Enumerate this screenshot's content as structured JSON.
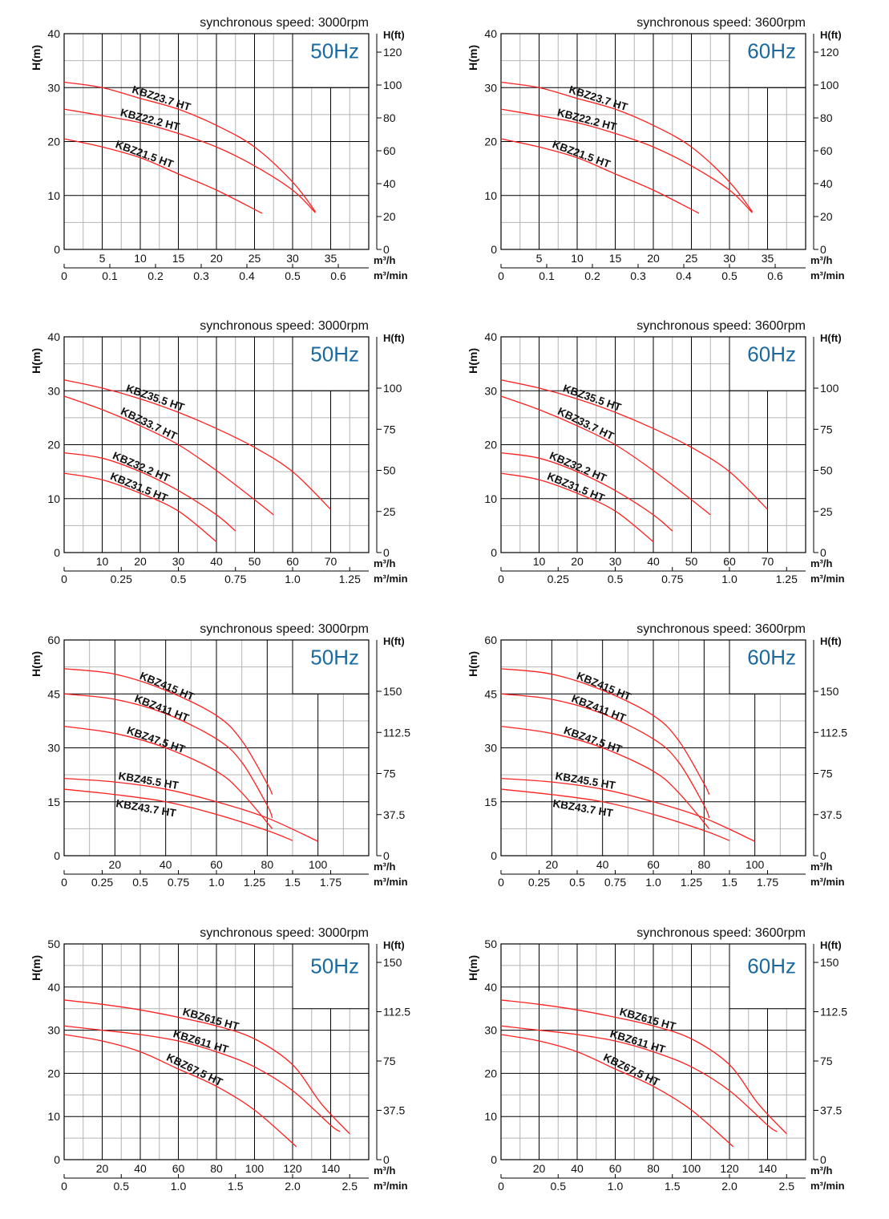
{
  "colors": {
    "curve": "#ff2020",
    "hz_label": "#1a6aa0",
    "major_grid": "#000000",
    "minor_grid": "#b4b4b4"
  },
  "chart_data": [
    {
      "type": "line",
      "title": "synchronous speed: 3000rpm",
      "badge": "50Hz",
      "ylabel": "H(m)",
      "ylabel2": "H(ft)",
      "xunit": "m³/h",
      "xunit2": "m³/min",
      "xlim": [
        0,
        40
      ],
      "ylim": [
        0,
        40
      ],
      "grid": true,
      "xticks": [
        5,
        10,
        15,
        20,
        25,
        30,
        35
      ],
      "yticks": [
        0,
        10,
        20,
        30,
        40
      ],
      "ft_ticks": [
        "0",
        "20",
        "40",
        "60",
        "80",
        "100",
        "120"
      ],
      "ft_values": [
        0,
        20,
        40,
        60,
        80,
        100,
        120
      ],
      "min_ticks": [
        "0",
        "0.1",
        "0.2",
        "0.3",
        "0.4",
        "0.5",
        "0.6"
      ],
      "min_values": [
        0,
        0.1,
        0.2,
        0.3,
        0.4,
        0.5,
        0.6
      ],
      "series": [
        {
          "name": "KBZ23.7 HT",
          "label_x": 8.7,
          "x": [
            0,
            5,
            10,
            15,
            20,
            25,
            30,
            33
          ],
          "y": [
            31,
            30,
            28,
            26,
            23,
            19,
            12.5,
            7
          ]
        },
        {
          "name": "KBZ22.2 HT",
          "label_x": 7.2,
          "x": [
            0,
            5,
            10,
            15,
            20,
            25,
            30,
            33
          ],
          "y": [
            26,
            24.8,
            23.5,
            21.5,
            19,
            15.5,
            11,
            6.8
          ]
        },
        {
          "name": "KBZ21.5 HT",
          "label_x": 6.5,
          "x": [
            0,
            5,
            10,
            15,
            20,
            26
          ],
          "y": [
            20.5,
            19,
            17,
            14,
            11,
            6.7
          ]
        }
      ]
    },
    {
      "type": "line",
      "title": "synchronous speed: 3600rpm",
      "badge": "60Hz",
      "ylabel": "H(m)",
      "ylabel2": "H(ft)",
      "xunit": "m³/h",
      "xunit2": "m³/min",
      "xlim": [
        0,
        40
      ],
      "ylim": [
        0,
        40
      ],
      "grid": true,
      "xticks": [
        5,
        10,
        15,
        20,
        25,
        30,
        35
      ],
      "yticks": [
        0,
        10,
        20,
        30,
        40
      ],
      "ft_ticks": [
        "0",
        "20",
        "40",
        "60",
        "80",
        "100",
        "120"
      ],
      "ft_values": [
        0,
        20,
        40,
        60,
        80,
        100,
        120
      ],
      "min_ticks": [
        "0",
        "0.1",
        "0.2",
        "0.3",
        "0.4",
        "0.5",
        "0.6"
      ],
      "min_values": [
        0,
        0.1,
        0.2,
        0.3,
        0.4,
        0.5,
        0.6
      ],
      "series": [
        {
          "name": "KBZ23.7 HT",
          "label_x": 8.7,
          "x": [
            0,
            5,
            10,
            15,
            20,
            25,
            30,
            33
          ],
          "y": [
            31,
            30,
            28,
            26,
            23,
            19,
            12.5,
            7
          ]
        },
        {
          "name": "KBZ22.2 HT",
          "label_x": 7.2,
          "x": [
            0,
            5,
            10,
            15,
            20,
            25,
            30,
            33
          ],
          "y": [
            26,
            24.8,
            23.5,
            21.5,
            19,
            15.5,
            11,
            6.8
          ]
        },
        {
          "name": "KBZ21.5 HT",
          "label_x": 6.5,
          "x": [
            0,
            5,
            10,
            15,
            20,
            26
          ],
          "y": [
            20.5,
            19,
            17,
            14,
            11,
            6.7
          ]
        }
      ]
    },
    {
      "type": "line",
      "title": "synchronous speed: 3000rpm",
      "badge": "50Hz",
      "ylabel": "H(m)",
      "ylabel2": "H(ft)",
      "xunit": "m³/h",
      "xunit2": "m³/min",
      "xlim": [
        0,
        80
      ],
      "ylim": [
        0,
        40
      ],
      "grid": true,
      "xticks": [
        10,
        20,
        30,
        40,
        50,
        60,
        70
      ],
      "yticks": [
        0,
        10,
        20,
        30,
        40
      ],
      "ft_ticks": [
        "0",
        "25",
        "50",
        "75",
        "100"
      ],
      "ft_values": [
        0,
        25,
        50,
        75,
        100
      ],
      "min_ticks": [
        "0",
        "0.25",
        "0.5",
        "0.75",
        "1.0",
        "1.25"
      ],
      "min_values": [
        0,
        0.25,
        0.5,
        0.75,
        1.0,
        1.25
      ],
      "series": [
        {
          "name": "KBZ35.5 HT",
          "label_x": 15.8,
          "x": [
            0,
            10,
            20,
            30,
            40,
            50,
            60,
            70
          ],
          "y": [
            32,
            30.5,
            28.5,
            26,
            23,
            19.5,
            15,
            8
          ]
        },
        {
          "name": "KBZ33.7 HT",
          "label_x": 14.3,
          "x": [
            0,
            10,
            20,
            30,
            40,
            50,
            55
          ],
          "y": [
            29,
            26.5,
            23.5,
            20,
            15.2,
            9.8,
            7
          ]
        },
        {
          "name": "KBZ32.2 HT",
          "label_x": 12.2,
          "x": [
            0,
            10,
            20,
            30,
            40,
            45
          ],
          "y": [
            18.5,
            17.5,
            15,
            11.5,
            7,
            4
          ]
        },
        {
          "name": "KBZ31.5 HT",
          "label_x": 11.6,
          "x": [
            0,
            10,
            20,
            30,
            40
          ],
          "y": [
            14.7,
            13.5,
            11,
            7.7,
            2
          ]
        }
      ]
    },
    {
      "type": "line",
      "title": "synchronous speed: 3600rpm",
      "badge": "60Hz",
      "ylabel": "H(m)",
      "ylabel2": "H(ft)",
      "xunit": "m³/h",
      "xunit2": "m³/min",
      "xlim": [
        0,
        80
      ],
      "ylim": [
        0,
        40
      ],
      "grid": true,
      "xticks": [
        10,
        20,
        30,
        40,
        50,
        60,
        70
      ],
      "yticks": [
        0,
        10,
        20,
        30,
        40
      ],
      "ft_ticks": [
        "0",
        "25",
        "50",
        "75",
        "100"
      ],
      "ft_values": [
        0,
        25,
        50,
        75,
        100
      ],
      "min_ticks": [
        "0",
        "0.25",
        "0.5",
        "0.75",
        "1.0",
        "1.25"
      ],
      "min_values": [
        0,
        0.25,
        0.5,
        0.75,
        1.0,
        1.25
      ],
      "series": [
        {
          "name": "KBZ35.5 HT",
          "label_x": 15.8,
          "x": [
            0,
            10,
            20,
            30,
            40,
            50,
            60,
            70
          ],
          "y": [
            32,
            30.5,
            28.5,
            26,
            23,
            19.5,
            15,
            8
          ]
        },
        {
          "name": "KBZ33.7 HT",
          "label_x": 14.3,
          "x": [
            0,
            10,
            20,
            30,
            40,
            50,
            55
          ],
          "y": [
            29,
            26.5,
            23.5,
            20,
            15.2,
            9.8,
            7
          ]
        },
        {
          "name": "KBZ32.2 HT",
          "label_x": 12.2,
          "x": [
            0,
            10,
            20,
            30,
            40,
            45
          ],
          "y": [
            18.5,
            17.5,
            15,
            11.5,
            7,
            4
          ]
        },
        {
          "name": "KBZ31.5 HT",
          "label_x": 11.6,
          "x": [
            0,
            10,
            20,
            30,
            40
          ],
          "y": [
            14.7,
            13.5,
            11,
            7.7,
            2
          ]
        }
      ]
    },
    {
      "type": "line",
      "title": "synchronous speed: 3000rpm",
      "badge": "50Hz",
      "ylabel": "H(m)",
      "ylabel2": "H(ft)",
      "xunit": "m³/h",
      "xunit2": "m³/min",
      "xlim": [
        0,
        120
      ],
      "ylim": [
        0,
        60
      ],
      "grid": true,
      "xticks": [
        20,
        40,
        60,
        80,
        100
      ],
      "yticks": [
        0,
        15,
        30,
        45,
        60
      ],
      "ft_ticks": [
        "0",
        "37.5",
        "75",
        "112.5",
        "150"
      ],
      "ft_values": [
        0,
        37.5,
        75,
        112.5,
        150
      ],
      "min_ticks": [
        "0",
        "0.25",
        "0.5",
        "0.75",
        "1.0",
        "1.25",
        "1.5",
        "1.75"
      ],
      "min_values": [
        0,
        0.25,
        0.5,
        0.75,
        1.0,
        1.25,
        1.5,
        1.75
      ],
      "series": [
        {
          "name": "KBZ415 HT",
          "label_x": 29,
          "x": [
            0,
            20,
            40,
            60,
            70,
            80,
            82
          ],
          "y": [
            52,
            50.5,
            46,
            39,
            32,
            20,
            17
          ]
        },
        {
          "name": "KBZ411 HT",
          "label_x": 27,
          "x": [
            0,
            20,
            40,
            60,
            70,
            80,
            82
          ],
          "y": [
            45,
            43.5,
            39.5,
            32.5,
            26,
            14,
            10.5
          ]
        },
        {
          "name": "KBZ47.5 HT",
          "label_x": 24,
          "x": [
            0,
            20,
            40,
            60,
            70,
            82
          ],
          "y": [
            36,
            34,
            30,
            23.5,
            17.5,
            7.5
          ]
        },
        {
          "name": "KBZ45.5 HT",
          "label_x": 21,
          "x": [
            0,
            20,
            40,
            60,
            80,
            100
          ],
          "y": [
            21.5,
            20.5,
            18.5,
            15,
            10.5,
            4
          ]
        },
        {
          "name": "KBZ43.7 HT",
          "label_x": 21,
          "label_below": true,
          "x": [
            0,
            20,
            40,
            60,
            80,
            90
          ],
          "y": [
            18.5,
            17,
            15,
            11.5,
            7,
            4.2
          ]
        }
      ]
    },
    {
      "type": "line",
      "title": "synchronous speed: 3600rpm",
      "badge": "60Hz",
      "ylabel": "H(m)",
      "ylabel2": "H(ft)",
      "xunit": "m³/h",
      "xunit2": "m³/min",
      "xlim": [
        0,
        120
      ],
      "ylim": [
        0,
        60
      ],
      "grid": true,
      "xticks": [
        20,
        40,
        60,
        80,
        100
      ],
      "yticks": [
        0,
        15,
        30,
        45,
        60
      ],
      "ft_ticks": [
        "0",
        "37.5",
        "75",
        "112.5",
        "150"
      ],
      "ft_values": [
        0,
        37.5,
        75,
        112.5,
        150
      ],
      "min_ticks": [
        "0",
        "0.25",
        "0.5",
        "0.75",
        "1.0",
        "1.25",
        "1.5",
        "1.75"
      ],
      "min_values": [
        0,
        0.25,
        0.5,
        0.75,
        1.0,
        1.25,
        1.5,
        1.75
      ],
      "series": [
        {
          "name": "KBZ415 HT",
          "label_x": 29,
          "x": [
            0,
            20,
            40,
            60,
            70,
            80,
            82
          ],
          "y": [
            52,
            50.5,
            46,
            39,
            32,
            20,
            17
          ]
        },
        {
          "name": "KBZ411 HT",
          "label_x": 27,
          "x": [
            0,
            20,
            40,
            60,
            70,
            80,
            82
          ],
          "y": [
            45,
            43.5,
            39.5,
            32.5,
            26,
            14,
            10.5
          ]
        },
        {
          "name": "KBZ47.5 HT",
          "label_x": 24,
          "x": [
            0,
            20,
            40,
            60,
            70,
            82
          ],
          "y": [
            36,
            34,
            30,
            23.5,
            17.5,
            7.5
          ]
        },
        {
          "name": "KBZ45.5 HT",
          "label_x": 21,
          "x": [
            0,
            20,
            40,
            60,
            80,
            100
          ],
          "y": [
            21.5,
            20.5,
            18.5,
            15,
            10.5,
            4
          ]
        },
        {
          "name": "KBZ43.7 HT",
          "label_x": 21,
          "label_below": true,
          "x": [
            0,
            20,
            40,
            60,
            80,
            90
          ],
          "y": [
            18.5,
            17,
            15,
            11.5,
            7,
            4.2
          ]
        }
      ]
    },
    {
      "type": "line",
      "title": "synchronous speed: 3000rpm",
      "badge": "50Hz",
      "ylabel": "H(m)",
      "ylabel2": "H(ft)",
      "xunit": "m³/h",
      "xunit2": "m³/min",
      "xlim": [
        0,
        160
      ],
      "ylim": [
        0,
        50
      ],
      "grid": true,
      "xticks": [
        20,
        40,
        60,
        80,
        100,
        120,
        140
      ],
      "yticks": [
        0,
        10,
        20,
        30,
        40,
        50
      ],
      "ft_ticks": [
        "0",
        "37.5",
        "75",
        "112.5",
        "150"
      ],
      "ft_values": [
        0,
        37.5,
        75,
        112.5,
        150
      ],
      "min_ticks": [
        "0",
        "0.5",
        "1.0",
        "1.5",
        "2.0",
        "2.5"
      ],
      "min_values": [
        0,
        0.5,
        1.0,
        1.5,
        2.0,
        2.5
      ],
      "series": [
        {
          "name": "KBZ615 HT",
          "label_x": 61.5,
          "x": [
            0,
            20,
            40,
            60,
            80,
            100,
            120,
            135,
            150
          ],
          "y": [
            37,
            36,
            34.7,
            33,
            31,
            28,
            22,
            13,
            6
          ]
        },
        {
          "name": "KBZ611 HT",
          "label_x": 56.4,
          "x": [
            0,
            20,
            40,
            60,
            80,
            100,
            120,
            140,
            145
          ],
          "y": [
            31,
            30,
            29,
            27.5,
            25,
            21.5,
            16,
            8,
            6.5
          ]
        },
        {
          "name": "KBZ67,5 HT",
          "label_x": 52.6,
          "x": [
            0,
            20,
            40,
            60,
            80,
            100,
            122
          ],
          "y": [
            29,
            27.5,
            25,
            21,
            17,
            11.5,
            3
          ]
        }
      ]
    },
    {
      "type": "line",
      "title": "synchronous speed: 3600rpm",
      "badge": "60Hz",
      "ylabel": "H(m)",
      "ylabel2": "H(ft)",
      "xunit": "m³/h",
      "xunit2": "m³/min",
      "xlim": [
        0,
        160
      ],
      "ylim": [
        0,
        50
      ],
      "grid": true,
      "xticks": [
        20,
        40,
        60,
        80,
        100,
        120,
        140
      ],
      "yticks": [
        0,
        10,
        20,
        30,
        40,
        50
      ],
      "ft_ticks": [
        "0",
        "37.5",
        "75",
        "112.5",
        "150"
      ],
      "ft_values": [
        0,
        37.5,
        75,
        112.5,
        150
      ],
      "min_ticks": [
        "0",
        "0.5",
        "1.0",
        "1.5",
        "2.0",
        "2.5"
      ],
      "min_values": [
        0,
        0.5,
        1.0,
        1.5,
        2.0,
        2.5
      ],
      "series": [
        {
          "name": "KBZ615 HT",
          "label_x": 61.5,
          "x": [
            0,
            20,
            40,
            60,
            80,
            100,
            120,
            135,
            150
          ],
          "y": [
            37,
            36,
            34.7,
            33,
            31,
            28,
            22,
            13,
            6
          ]
        },
        {
          "name": "KBZ611 HT",
          "label_x": 56.4,
          "x": [
            0,
            20,
            40,
            60,
            80,
            100,
            120,
            140,
            145
          ],
          "y": [
            31,
            30,
            29,
            27.5,
            25,
            21.5,
            16,
            8,
            6.5
          ]
        },
        {
          "name": "KBZ67,5 HT",
          "label_x": 52.6,
          "x": [
            0,
            20,
            40,
            60,
            80,
            100,
            122
          ],
          "y": [
            29,
            27.5,
            25,
            21,
            17,
            11.5,
            3
          ]
        }
      ]
    }
  ]
}
